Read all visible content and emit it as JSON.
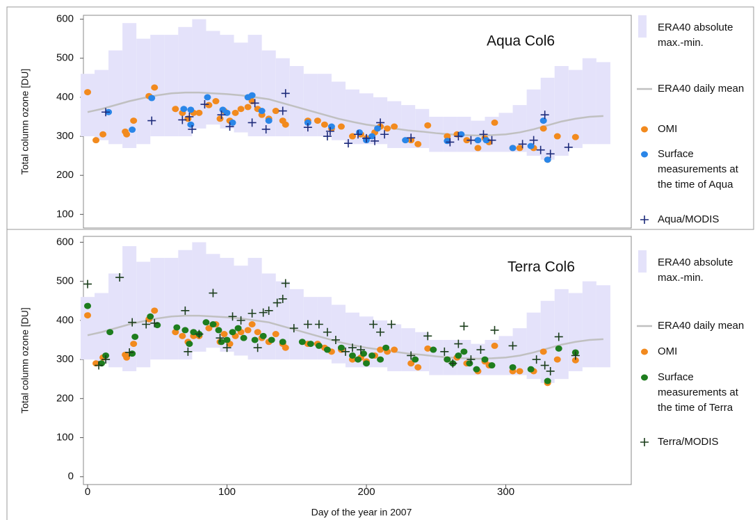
{
  "chart_data": [
    {
      "type": "scatter",
      "annotation": "Aqua Col6",
      "y_label": "Total column ozone [DU]",
      "xlim": [
        -3,
        390
      ],
      "ylim": [
        65,
        610
      ],
      "yticks": [
        100,
        200,
        300,
        400,
        500,
        600
      ],
      "series": [
        {
          "name": "ERA40 absolute max.-min.",
          "color": "#e4e2fa",
          "style": "band",
          "x": [
            0,
            10,
            20,
            30,
            40,
            50,
            60,
            70,
            80,
            90,
            100,
            110,
            120,
            130,
            140,
            150,
            160,
            170,
            180,
            190,
            200,
            210,
            220,
            230,
            240,
            250,
            260,
            270,
            280,
            290,
            300,
            310,
            320,
            330,
            340,
            350,
            360,
            370
          ],
          "high": [
            460,
            470,
            520,
            590,
            550,
            560,
            560,
            580,
            600,
            570,
            560,
            540,
            560,
            520,
            500,
            480,
            460,
            460,
            440,
            420,
            410,
            400,
            390,
            380,
            370,
            350,
            350,
            350,
            340,
            350,
            360,
            380,
            420,
            450,
            480,
            470,
            500,
            490
          ],
          "low": [
            300,
            290,
            280,
            270,
            280,
            300,
            300,
            300,
            320,
            330,
            320,
            310,
            300,
            300,
            300,
            300,
            300,
            300,
            290,
            280,
            280,
            280,
            270,
            270,
            270,
            260,
            260,
            260,
            260,
            260,
            260,
            260,
            250,
            240,
            250,
            270,
            280,
            280
          ]
        },
        {
          "name": "ERA40 daily mean",
          "color": "#c0c0c0",
          "style": "line",
          "x": [
            0,
            10,
            20,
            30,
            40,
            50,
            60,
            70,
            80,
            90,
            100,
            110,
            120,
            130,
            140,
            150,
            160,
            170,
            180,
            190,
            200,
            210,
            220,
            230,
            240,
            250,
            260,
            270,
            280,
            290,
            300,
            310,
            320,
            330,
            340,
            350,
            360,
            370
          ],
          "values": [
            362,
            370,
            380,
            390,
            398,
            405,
            410,
            412,
            412,
            410,
            408,
            405,
            400,
            395,
            385,
            375,
            365,
            355,
            345,
            337,
            330,
            325,
            320,
            315,
            312,
            308,
            305,
            303,
            302,
            303,
            305,
            310,
            318,
            328,
            338,
            345,
            350,
            352
          ]
        },
        {
          "name": "OMI",
          "color": "#f28a1e",
          "style": "circle",
          "x": [
            0,
            6,
            11,
            27,
            28,
            33,
            44,
            48,
            63,
            68,
            72,
            76,
            80,
            87,
            92,
            95,
            98,
            102,
            106,
            110,
            115,
            118,
            122,
            125,
            130,
            135,
            140,
            142,
            158,
            165,
            170,
            175,
            182,
            190,
            196,
            200,
            206,
            210,
            215,
            220,
            232,
            237,
            244,
            258,
            265,
            272,
            280,
            285,
            288,
            292,
            305,
            310,
            320,
            327,
            330,
            337,
            350
          ],
          "values": [
            413,
            290,
            305,
            312,
            305,
            340,
            403,
            425,
            370,
            360,
            345,
            360,
            360,
            380,
            390,
            345,
            365,
            340,
            360,
            370,
            375,
            390,
            370,
            355,
            345,
            365,
            340,
            330,
            340,
            340,
            330,
            320,
            325,
            300,
            305,
            295,
            310,
            325,
            320,
            325,
            290,
            280,
            328,
            300,
            305,
            290,
            270,
            295,
            285,
            335,
            270,
            270,
            270,
            320,
            240,
            300,
            298
          ]
        },
        {
          "name": "Surface measurements at the time of Aqua",
          "color": "#2a86e8",
          "style": "circle",
          "x": [
            15,
            32,
            46,
            69,
            74,
            74,
            86,
            97,
            100,
            104,
            115,
            118,
            125,
            130,
            158,
            175,
            195,
            200,
            204,
            208,
            228,
            258,
            268,
            280,
            286,
            305,
            318,
            327,
            330
          ],
          "values": [
            362,
            317,
            398,
            370,
            368,
            330,
            400,
            368,
            360,
            335,
            400,
            405,
            365,
            340,
            335,
            325,
            310,
            290,
            300,
            320,
            290,
            288,
            305,
            290,
            290,
            270,
            275,
            340,
            240
          ]
        },
        {
          "name": "Aqua/MODIS",
          "color": "#1c2a7a",
          "style": "plus",
          "x": [
            13,
            46,
            68,
            73,
            75,
            84,
            96,
            102,
            118,
            120,
            128,
            140,
            142,
            158,
            172,
            174,
            187,
            194,
            200,
            206,
            210,
            213,
            232,
            260,
            266,
            275,
            284,
            290,
            312,
            320,
            325,
            328,
            332,
            345
          ],
          "values": [
            362,
            340,
            342,
            350,
            318,
            382,
            355,
            325,
            335,
            385,
            318,
            365,
            410,
            323,
            300,
            313,
            282,
            305,
            295,
            288,
            335,
            305,
            296,
            285,
            300,
            290,
            305,
            290,
            280,
            290,
            265,
            355,
            255,
            272
          ]
        }
      ]
    },
    {
      "type": "scatter",
      "annotation": "Terra Col6",
      "y_label": "Total column ozone [DU]",
      "x_label": "Day of the year in 2007",
      "xlim": [
        -3,
        390
      ],
      "ylim": [
        -20,
        615
      ],
      "yticks": [
        0,
        100,
        200,
        300,
        400,
        500,
        600
      ],
      "xticks": [
        0,
        100,
        200,
        300
      ],
      "series": [
        {
          "name": "ERA40 absolute max.-min.",
          "color": "#e4e2fa",
          "style": "band",
          "x": [
            0,
            10,
            20,
            30,
            40,
            50,
            60,
            70,
            80,
            90,
            100,
            110,
            120,
            130,
            140,
            150,
            160,
            170,
            180,
            190,
            200,
            210,
            220,
            230,
            240,
            250,
            260,
            270,
            280,
            290,
            300,
            310,
            320,
            330,
            340,
            350,
            360,
            370
          ],
          "high": [
            460,
            470,
            520,
            590,
            550,
            560,
            560,
            580,
            600,
            570,
            560,
            540,
            560,
            520,
            500,
            480,
            460,
            460,
            440,
            420,
            410,
            400,
            390,
            380,
            370,
            350,
            350,
            350,
            340,
            350,
            360,
            380,
            420,
            450,
            480,
            470,
            500,
            490
          ],
          "low": [
            300,
            290,
            280,
            270,
            280,
            300,
            300,
            300,
            320,
            330,
            320,
            310,
            300,
            300,
            300,
            300,
            300,
            300,
            290,
            280,
            280,
            280,
            270,
            270,
            270,
            260,
            260,
            260,
            260,
            260,
            260,
            260,
            250,
            240,
            250,
            270,
            280,
            280
          ]
        },
        {
          "name": "ERA40 daily mean",
          "color": "#c0c0c0",
          "style": "line",
          "x": [
            0,
            10,
            20,
            30,
            40,
            50,
            60,
            70,
            80,
            90,
            100,
            110,
            120,
            130,
            140,
            150,
            160,
            170,
            180,
            190,
            200,
            210,
            220,
            230,
            240,
            250,
            260,
            270,
            280,
            290,
            300,
            310,
            320,
            330,
            340,
            350,
            360,
            370
          ],
          "values": [
            362,
            370,
            380,
            390,
            398,
            405,
            410,
            412,
            412,
            410,
            408,
            405,
            400,
            395,
            385,
            375,
            365,
            355,
            345,
            337,
            330,
            325,
            320,
            315,
            312,
            308,
            305,
            303,
            302,
            303,
            305,
            310,
            318,
            328,
            338,
            345,
            350,
            352
          ]
        },
        {
          "name": "OMI",
          "color": "#f28a1e",
          "style": "circle",
          "x": [
            0,
            6,
            11,
            27,
            28,
            33,
            44,
            48,
            63,
            68,
            72,
            76,
            80,
            87,
            92,
            95,
            98,
            102,
            106,
            110,
            115,
            118,
            122,
            125,
            130,
            135,
            140,
            142,
            158,
            165,
            170,
            175,
            182,
            190,
            196,
            200,
            206,
            210,
            215,
            220,
            232,
            237,
            244,
            258,
            265,
            272,
            280,
            285,
            288,
            292,
            305,
            310,
            320,
            327,
            330,
            337,
            350
          ],
          "values": [
            413,
            290,
            305,
            312,
            305,
            340,
            403,
            425,
            370,
            360,
            345,
            360,
            360,
            380,
            390,
            345,
            365,
            340,
            360,
            370,
            375,
            390,
            370,
            355,
            345,
            365,
            340,
            330,
            340,
            340,
            330,
            320,
            325,
            300,
            305,
            295,
            310,
            325,
            320,
            325,
            290,
            280,
            328,
            300,
            305,
            290,
            270,
            295,
            285,
            335,
            270,
            270,
            270,
            320,
            240,
            300,
            298
          ]
        },
        {
          "name": "Surface measurements at the time of Terra",
          "color": "#1e7d1e",
          "style": "circle",
          "x": [
            0,
            10,
            13,
            16,
            32,
            34,
            45,
            50,
            64,
            70,
            73,
            76,
            80,
            85,
            90,
            94,
            96,
            100,
            104,
            108,
            112,
            120,
            126,
            132,
            140,
            154,
            160,
            166,
            172,
            182,
            190,
            194,
            198,
            200,
            204,
            210,
            214,
            235,
            248,
            258,
            262,
            266,
            270,
            274,
            279,
            285,
            290,
            305,
            318,
            330,
            338,
            350
          ],
          "values": [
            437,
            290,
            310,
            370,
            315,
            358,
            410,
            388,
            382,
            375,
            340,
            370,
            365,
            395,
            390,
            375,
            345,
            350,
            370,
            380,
            355,
            350,
            360,
            350,
            345,
            345,
            340,
            335,
            325,
            330,
            310,
            300,
            315,
            290,
            310,
            300,
            330,
            300,
            325,
            300,
            290,
            310,
            320,
            290,
            275,
            300,
            285,
            280,
            275,
            245,
            328,
            318
          ]
        },
        {
          "name": "Terra/MODIS",
          "color": "#1a3d1a",
          "style": "plus",
          "x": [
            0,
            8,
            13,
            23,
            30,
            32,
            42,
            48,
            70,
            72,
            80,
            90,
            95,
            100,
            104,
            110,
            118,
            122,
            126,
            130,
            136,
            140,
            142,
            148,
            158,
            166,
            172,
            178,
            185,
            190,
            196,
            205,
            210,
            218,
            232,
            244,
            256,
            262,
            266,
            270,
            275,
            282,
            292,
            305,
            322,
            328,
            332,
            338,
            350
          ],
          "values": [
            493,
            285,
            300,
            510,
            318,
            395,
            390,
            393,
            425,
            320,
            365,
            470,
            355,
            330,
            410,
            400,
            418,
            330,
            420,
            425,
            445,
            455,
            495,
            380,
            390,
            390,
            370,
            350,
            320,
            330,
            325,
            390,
            370,
            390,
            310,
            360,
            320,
            290,
            340,
            385,
            300,
            325,
            375,
            335,
            300,
            285,
            270,
            358,
            310
          ]
        }
      ]
    }
  ]
}
